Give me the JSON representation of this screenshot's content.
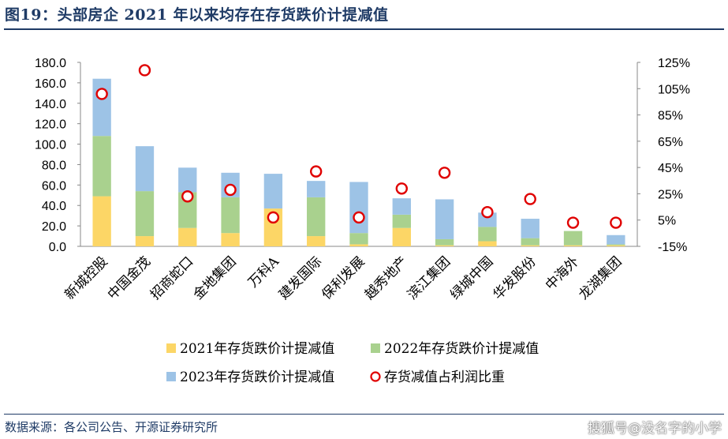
{
  "header": {
    "title": "图19：头部房企 2021 年以来均存在存货跌价计提减值"
  },
  "footer": {
    "source": "数据来源：各公司公告、开源证券研究所",
    "watermark": "搜狐号@没名字的小学"
  },
  "colors": {
    "s2021": "#fcd666",
    "s2022": "#a9d18e",
    "s2023": "#9dc3e6",
    "marker": "#e00000"
  },
  "chart_data": {
    "type": "bar",
    "stacked": true,
    "categories": [
      "新城控股",
      "中国金茂",
      "招商蛇口",
      "金地集团",
      "万科A",
      "建发国际",
      "保利发展",
      "越秀地产",
      "滨江集团",
      "绿城中国",
      "华发股份",
      "中海外",
      "龙湖集团"
    ],
    "series": [
      {
        "name": "2021年存货跌价计提减值",
        "axis": "left",
        "values": [
          49,
          10,
          18,
          13,
          37,
          10,
          2,
          18,
          1,
          5,
          1,
          1,
          1
        ]
      },
      {
        "name": "2022年存货跌价计提减值",
        "axis": "left",
        "values": [
          59,
          44,
          35,
          35,
          0,
          38,
          11,
          13,
          6,
          14,
          7,
          14,
          1
        ]
      },
      {
        "name": "2023年存货跌价计提减值",
        "axis": "left",
        "values": [
          56,
          44,
          24,
          24,
          34,
          16,
          50,
          16,
          39,
          14,
          19,
          0,
          9
        ]
      },
      {
        "name": "存货减值占利润比重",
        "axis": "right",
        "type": "scatter",
        "values": [
          1.01,
          1.19,
          0.23,
          0.28,
          0.07,
          0.42,
          0.07,
          0.29,
          0.41,
          0.11,
          0.21,
          0.03,
          0.03
        ]
      }
    ],
    "y_left": {
      "range": [
        0,
        180
      ],
      "ticks": [
        "0.0",
        "20.0",
        "40.0",
        "60.0",
        "80.0",
        "100.0",
        "120.0",
        "140.0",
        "160.0",
        "180.0"
      ]
    },
    "y_right": {
      "range": [
        -0.15,
        1.25
      ],
      "ticks": [
        "-15%",
        "5%",
        "25%",
        "45%",
        "65%",
        "85%",
        "105%",
        "125%"
      ]
    },
    "grid": false,
    "legend": "bottom"
  }
}
